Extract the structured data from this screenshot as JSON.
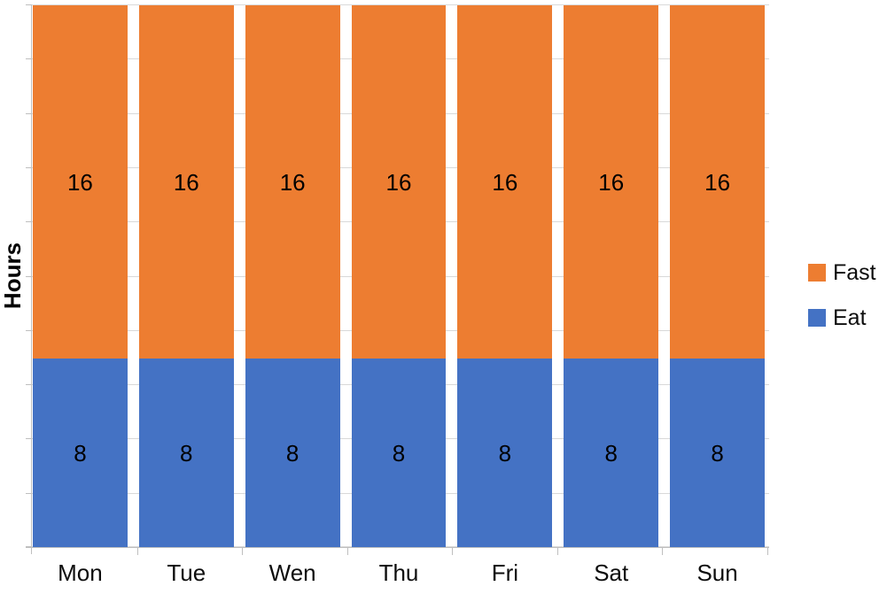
{
  "chart_data": {
    "type": "bar",
    "stacked": true,
    "title": "",
    "categories": [
      "Mon",
      "Tue",
      "Wen",
      "Thu",
      "Fri",
      "Sat",
      "Sun"
    ],
    "series": [
      {
        "name": "Fast",
        "color": "#ED7D31",
        "values": [
          16,
          16,
          16,
          16,
          16,
          16,
          16
        ]
      },
      {
        "name": "Eat",
        "color": "#4472C4",
        "values": [
          8,
          8,
          8,
          8,
          8,
          8,
          8
        ]
      }
    ],
    "xlabel": "",
    "ylabel": "Hours",
    "ylim": [
      0,
      24
    ],
    "y_tick_intervals": 10,
    "grid": true,
    "data_labels": true,
    "legend_position": "right"
  },
  "colors": {
    "axis": "#BFBFBF",
    "gridline": "#D9D9D9",
    "label_text": "#000000",
    "background": "#FFFFFF"
  }
}
